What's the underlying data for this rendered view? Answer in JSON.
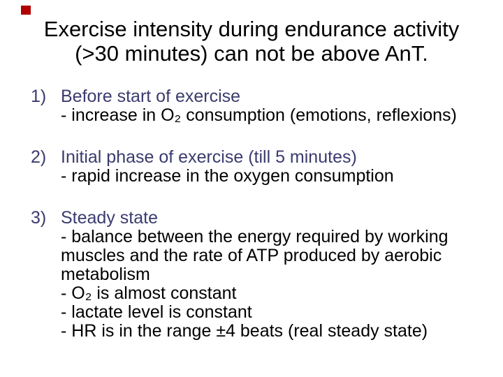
{
  "slide": {
    "background_color": "#ffffff",
    "marker": {
      "description": "small red square at top-left",
      "color": "#b00000"
    },
    "title": {
      "color": "#000000",
      "line1": "Exercise intensity during endurance activity",
      "line2": "(>30 minutes) can not be above AnT."
    },
    "list": {
      "heading_color": "#3b3b6e",
      "body_color": "#000000",
      "items": [
        {
          "number": "1)",
          "heading": "Before start of exercise",
          "sub_lines": [
            "- increase in O₂ consumption (emotions, reflexions)"
          ]
        },
        {
          "number": "2)",
          "heading": "Initial phase of exercise (till 5 minutes)",
          "sub_lines": [
            "- rapid increase in the oxygen consumption"
          ]
        },
        {
          "number": "3)",
          "heading": "Steady state",
          "sub_lines": [
            "- balance between the energy required by working",
            "muscles and the rate of ATP produced by aerobic",
            "metabolism",
            "- O₂ is almost constant",
            "- lactate level is constant",
            "- HR is in the range ±4 beats (real steady state)"
          ]
        }
      ]
    }
  }
}
